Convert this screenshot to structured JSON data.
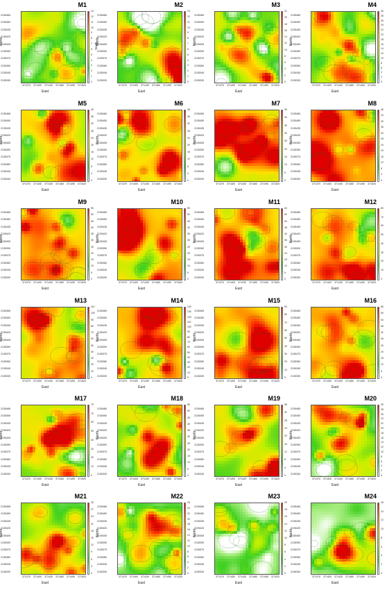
{
  "colors": {
    "scale": [
      "#ffffff",
      "#a8ee80",
      "#40d020",
      "#c0f000",
      "#ffe000",
      "#ff9a00",
      "#ff4000",
      "#e00000"
    ],
    "contour": "#1a5a1a",
    "frame": "#555555"
  },
  "axes": {
    "xlabel": "East",
    "ylabel": "North",
    "xticks": [
      "371370",
      "371400",
      "371430",
      "371460",
      "371490",
      "371520"
    ],
    "yticks": [
      "2135465",
      "2135450",
      "2135435",
      "2135420",
      "2135405",
      "2135390",
      "2135375",
      "2135360",
      "2135345",
      "2135330"
    ],
    "xlim": [
      371355,
      371535
    ],
    "ylim": [
      2135325,
      2135470
    ],
    "colorbar_label_first": "South"
  },
  "chart_data": [
    {
      "type": "heatmap",
      "title": "M1",
      "vmax": 13,
      "level": 0.35,
      "ticks": [
        "13",
        "12",
        "11",
        "10",
        "9",
        "8",
        "7",
        "6",
        "5",
        "4",
        "3",
        "2",
        "1",
        "0"
      ]
    },
    {
      "type": "heatmap",
      "title": "M2",
      "vmax": 13,
      "level": 0.34,
      "ticks": [
        "13",
        "12",
        "11",
        "10",
        "9",
        "8",
        "7",
        "6",
        "5",
        "4",
        "3",
        "2",
        "1",
        "0"
      ]
    },
    {
      "type": "heatmap",
      "title": "M3",
      "vmax": 21,
      "level": 0.4,
      "ticks": [
        "21",
        "20",
        "18",
        "16",
        "14",
        "12",
        "10",
        "8",
        "6",
        "4",
        "2",
        "0"
      ]
    },
    {
      "type": "heatmap",
      "title": "M4",
      "vmax": 30,
      "level": 0.42,
      "ticks": [
        "30",
        "28",
        "26",
        "24",
        "22",
        "20",
        "18",
        "16",
        "14",
        "12",
        "10",
        "8",
        "6",
        "4",
        "2",
        "0"
      ]
    },
    {
      "type": "heatmap",
      "title": "M5",
      "vmax": 40,
      "level": 0.48,
      "ticks": [
        "40",
        "36",
        "32",
        "28",
        "24",
        "20",
        "16",
        "12",
        "8",
        "4",
        "0"
      ]
    },
    {
      "type": "heatmap",
      "title": "M6",
      "vmax": 38,
      "level": 0.55,
      "ticks": [
        "38",
        "36",
        "32",
        "28",
        "24",
        "20",
        "16",
        "12",
        "8",
        "4",
        "0"
      ]
    },
    {
      "type": "heatmap",
      "title": "M7",
      "vmax": 45,
      "level": 0.58,
      "ticks": [
        "45",
        "40",
        "35",
        "30",
        "25",
        "20",
        "15",
        "10",
        "5",
        "0"
      ]
    },
    {
      "type": "heatmap",
      "title": "M8",
      "vmax": 46,
      "level": 0.62,
      "ticks": [
        "46",
        "44",
        "40",
        "36",
        "32",
        "28",
        "24",
        "20",
        "16",
        "12",
        "8",
        "4",
        "0"
      ]
    },
    {
      "type": "heatmap",
      "title": "M9",
      "vmax": 55,
      "level": 0.66,
      "ticks": [
        "55",
        "50",
        "45",
        "40",
        "35",
        "30",
        "25",
        "20",
        "15",
        "10",
        "5",
        "0"
      ]
    },
    {
      "type": "heatmap",
      "title": "M10",
      "vmax": 55,
      "level": 0.66,
      "ticks": [
        "55",
        "50",
        "45",
        "40",
        "35",
        "30",
        "25",
        "20",
        "15",
        "10",
        "5",
        "0"
      ]
    },
    {
      "type": "heatmap",
      "title": "M11",
      "vmax": 64,
      "level": 0.64,
      "ticks": [
        "64",
        "60",
        "54",
        "48",
        "42",
        "36",
        "30",
        "24",
        "18",
        "12",
        "6",
        "0"
      ]
    },
    {
      "type": "heatmap",
      "title": "M12",
      "vmax": 80,
      "level": 0.64,
      "ticks": [
        "80",
        "70",
        "60",
        "50",
        "40",
        "30",
        "20",
        "10",
        "0"
      ]
    },
    {
      "type": "heatmap",
      "title": "M13",
      "vmax": 110,
      "level": 0.56,
      "ticks": [
        "110",
        "100",
        "90",
        "80",
        "70",
        "60",
        "50",
        "40",
        "30",
        "20",
        "10",
        "0"
      ]
    },
    {
      "type": "heatmap",
      "title": "M14",
      "vmax": 140,
      "level": 0.55,
      "ticks": [
        "140",
        "130",
        "120",
        "110",
        "100",
        "90",
        "80",
        "70",
        "60",
        "50",
        "40",
        "30",
        "20",
        "10",
        "0"
      ]
    },
    {
      "type": "heatmap",
      "title": "M15",
      "vmax": 90,
      "level": 0.6,
      "ticks": [
        "90",
        "80",
        "70",
        "60",
        "50",
        "40",
        "30",
        "20",
        "10",
        "0"
      ]
    },
    {
      "type": "heatmap",
      "title": "M16",
      "vmax": 66,
      "level": 0.58,
      "ticks": [
        "66",
        "60",
        "54",
        "48",
        "42",
        "36",
        "30",
        "24",
        "18",
        "12",
        "6",
        "0"
      ]
    },
    {
      "type": "heatmap",
      "title": "M17",
      "vmax": 75,
      "level": 0.42,
      "ticks": [
        "75",
        "70",
        "60",
        "50",
        "40",
        "30",
        "20",
        "10",
        "0"
      ]
    },
    {
      "type": "heatmap",
      "title": "M18",
      "vmax": 55,
      "level": 0.42,
      "ticks": [
        "55",
        "50",
        "45",
        "40",
        "35",
        "30",
        "25",
        "20",
        "15",
        "10",
        "5",
        "0"
      ]
    },
    {
      "type": "heatmap",
      "title": "M19",
      "vmax": 36,
      "level": 0.38,
      "ticks": [
        "36",
        "32",
        "28",
        "24",
        "20",
        "16",
        "12",
        "8",
        "4",
        "0"
      ]
    },
    {
      "type": "heatmap",
      "title": "M20",
      "vmax": 30,
      "level": 0.3,
      "ticks": [
        "30",
        "28",
        "26",
        "24",
        "22",
        "20",
        "18",
        "16",
        "14",
        "12",
        "10",
        "8",
        "6",
        "4",
        "2",
        "0"
      ]
    },
    {
      "type": "heatmap",
      "title": "M21",
      "vmax": 30,
      "level": 0.3,
      "ticks": [
        "30",
        "27",
        "24",
        "21",
        "18",
        "15",
        "12",
        "9",
        "6",
        "3",
        "0"
      ]
    },
    {
      "type": "heatmap",
      "title": "M22",
      "vmax": 26,
      "level": 0.28,
      "ticks": [
        "26",
        "24",
        "22",
        "20",
        "18",
        "16",
        "14",
        "12",
        "10",
        "8",
        "6",
        "4",
        "2",
        "0"
      ]
    },
    {
      "type": "heatmap",
      "title": "M23",
      "vmax": 20,
      "level": 0.24,
      "ticks": [
        "20",
        "18",
        "16",
        "14",
        "12",
        "10",
        "8",
        "6",
        "4",
        "2",
        "0"
      ]
    },
    {
      "type": "heatmap",
      "title": "M24",
      "vmax": 16,
      "level": 0.2,
      "ticks": [
        "16",
        "14",
        "12",
        "10",
        "8",
        "6",
        "4",
        "2",
        "0"
      ]
    }
  ]
}
